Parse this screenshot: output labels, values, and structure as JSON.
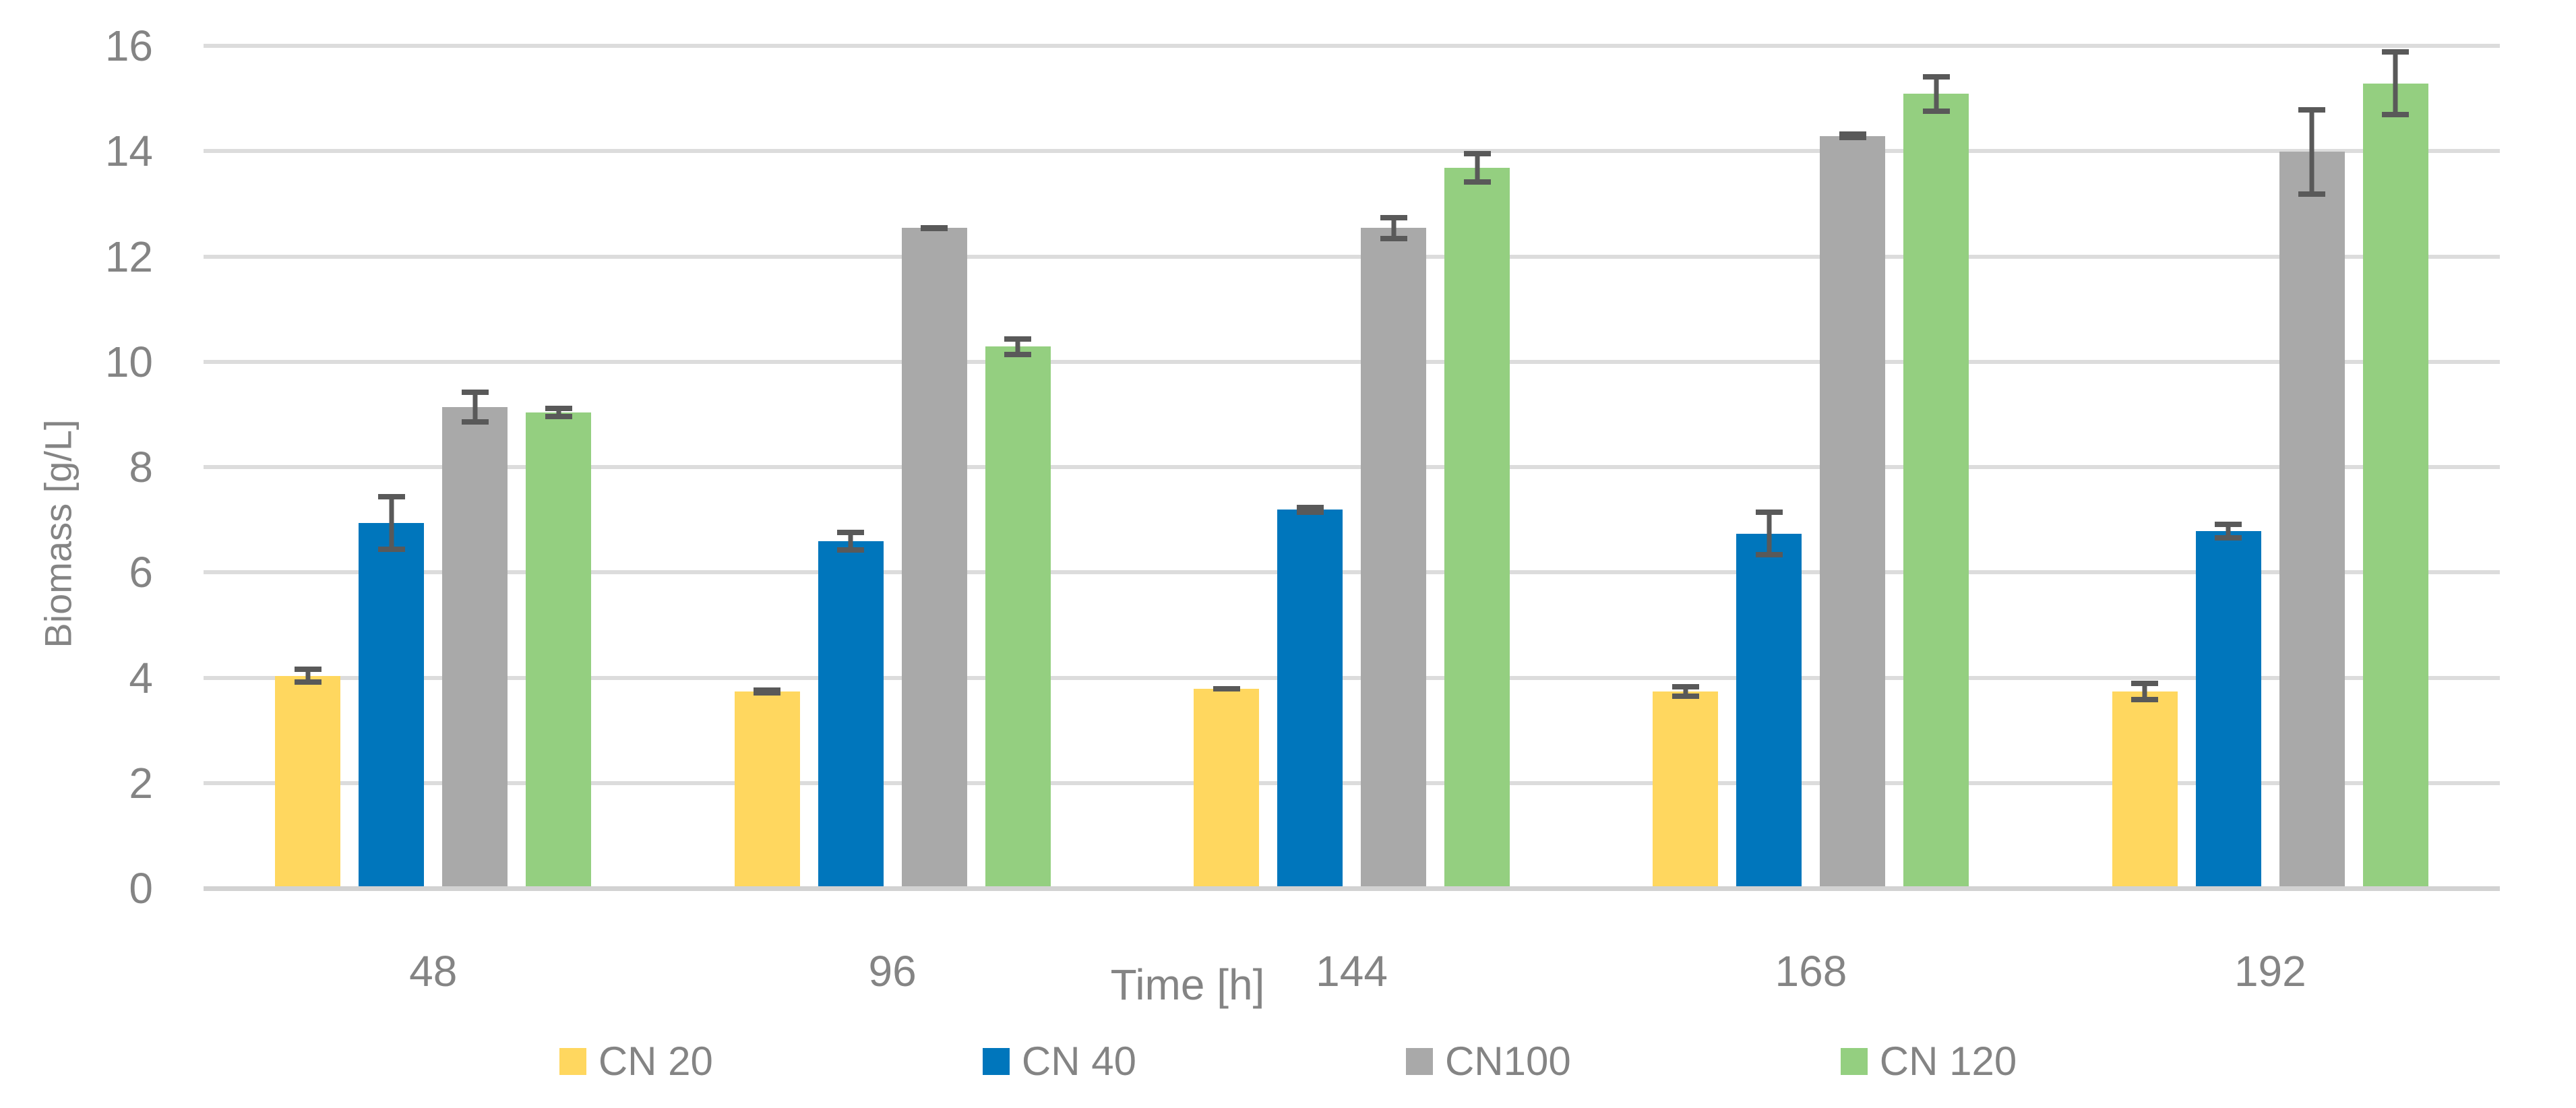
{
  "chart_data": {
    "type": "bar",
    "title": "",
    "categories": [
      "48",
      "96",
      "144",
      "168",
      "192"
    ],
    "series": [
      {
        "name": "CN 20",
        "color": "#FFD75F",
        "values": [
          4.0,
          3.7,
          3.75,
          3.7,
          3.7
        ],
        "errors": [
          0.17,
          0.08,
          0.05,
          0.14,
          0.21
        ]
      },
      {
        "name": "CN 40",
        "color": "#0076BC",
        "values": [
          6.9,
          6.55,
          7.15,
          6.7,
          6.75
        ],
        "errors": [
          0.55,
          0.22,
          0.1,
          0.45,
          0.18
        ]
      },
      {
        "name": "CN100",
        "color": "#A9A9A9",
        "values": [
          9.1,
          12.5,
          12.5,
          14.25,
          13.95
        ],
        "errors": [
          0.33,
          0.05,
          0.25,
          0.08,
          0.85
        ]
      },
      {
        "name": "CN 120",
        "color": "#94CF80",
        "values": [
          9.0,
          10.25,
          13.65,
          15.05,
          15.25
        ],
        "errors": [
          0.13,
          0.2,
          0.32,
          0.38,
          0.65
        ]
      }
    ],
    "xlabel": "Time [h]",
    "ylabel": "Biomass [g/L]",
    "ylim": [
      0,
      16
    ],
    "ytick_step": 2,
    "yticks": [
      "0",
      "2",
      "4",
      "6",
      "8",
      "10",
      "12",
      "14",
      "16"
    ],
    "grid": "horizontal",
    "legend_position": "bottom",
    "error_bar_color": "#595959",
    "gridline_color": "#DCDCDC",
    "axis_line_color": "#D2D2D2",
    "text_color": "#848484"
  }
}
